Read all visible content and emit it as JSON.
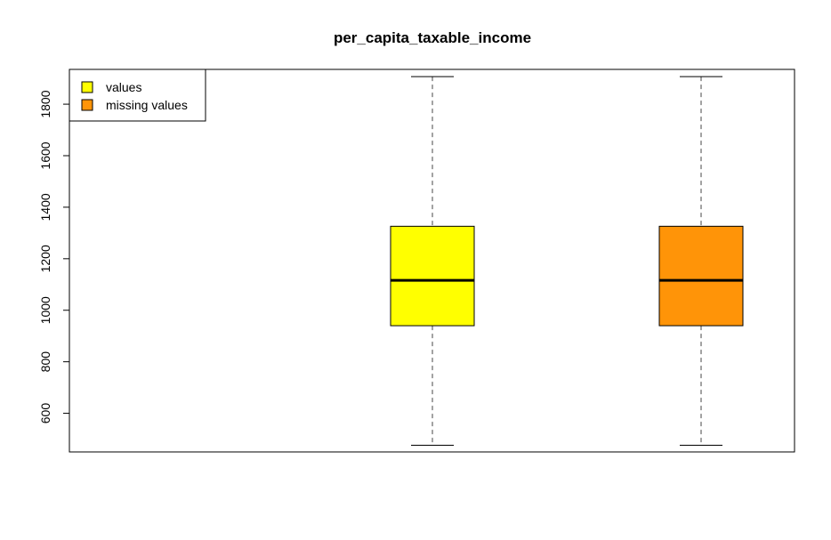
{
  "chart_data": {
    "type": "boxplot",
    "title": "per_capita_taxable_income",
    "xlabel": "",
    "ylabel": "",
    "ylim": [
      450,
      1935
    ],
    "yticks": [
      600,
      800,
      1000,
      1200,
      1400,
      1600,
      1800
    ],
    "legend": {
      "position": "top-left",
      "entries": [
        {
          "label": "values",
          "color": "#ffff00"
        },
        {
          "label": "missing values",
          "color": "#ff9408"
        }
      ]
    },
    "series": [
      {
        "name": "values",
        "color": "#ffff00",
        "min": 476,
        "q1": 940,
        "median": 1116,
        "q3": 1326,
        "max": 1907
      },
      {
        "name": "missing values",
        "color": "#ff9408",
        "min": 476,
        "q1": 940,
        "median": 1116,
        "q3": 1326,
        "max": 1907
      }
    ]
  }
}
